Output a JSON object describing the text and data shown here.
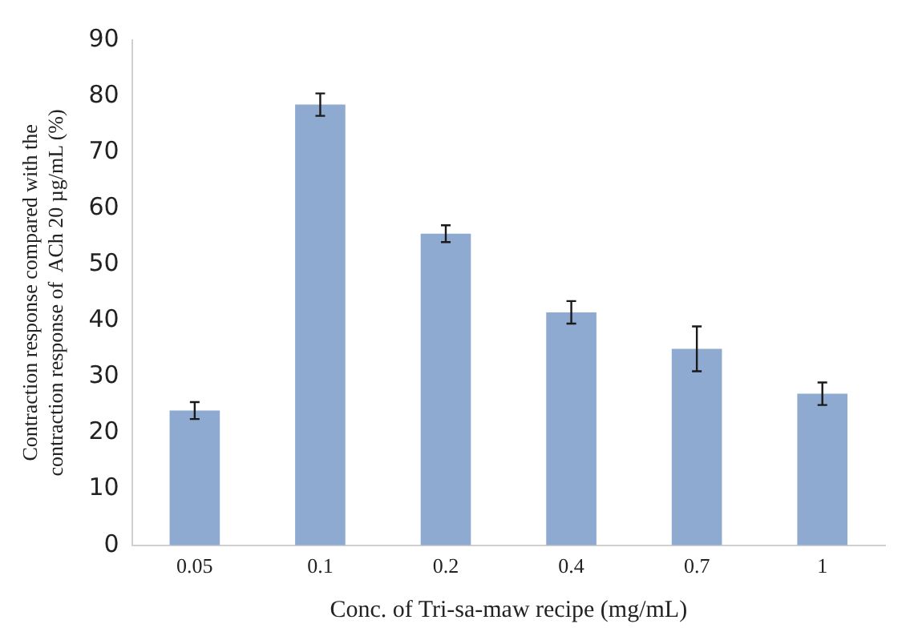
{
  "chart_data": {
    "type": "bar",
    "xlabel": "Conc. of Tri-sa-maw recipe (mg/mL)",
    "ylabel": "Contraction response compared with the\ncontraction response of  ACh 20 µg/mL (%)",
    "categories": [
      "0.05",
      "0.1",
      "0.2",
      "0.4",
      "0.7",
      "1"
    ],
    "values": [
      24,
      78.5,
      55.5,
      41.5,
      35,
      27
    ],
    "errors": [
      1.5,
      2,
      1.5,
      2,
      4,
      2
    ],
    "color": "#8eaad0",
    "ylim": [
      0,
      90
    ],
    "yticks": [
      0,
      10,
      20,
      30,
      40,
      50,
      60,
      70,
      80,
      90
    ],
    "grid": false
  }
}
